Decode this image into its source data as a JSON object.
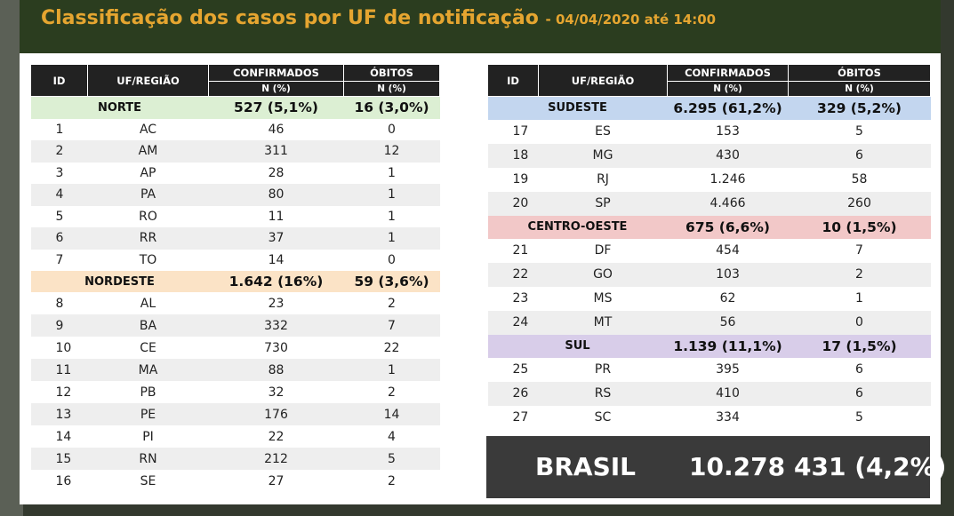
{
  "title": {
    "main": "Classificação dos casos por UF de notificação",
    "date": "- 04/04/2020 até 14:00"
  },
  "headers": {
    "id": "ID",
    "uf": "UF/REGIÃO",
    "confirmed": "CONFIRMADOS",
    "deaths": "ÓBITOS",
    "unit": "N (%)"
  },
  "left": {
    "norte": {
      "region": {
        "name": "NORTE",
        "confirmed": "527 (5,1%)",
        "deaths": "16 (3,0%)"
      },
      "rows": [
        {
          "id": "1",
          "uf": "AC",
          "confirmed": "46",
          "deaths": "0"
        },
        {
          "id": "2",
          "uf": "AM",
          "confirmed": "311",
          "deaths": "12"
        },
        {
          "id": "3",
          "uf": "AP",
          "confirmed": "28",
          "deaths": "1"
        },
        {
          "id": "4",
          "uf": "PA",
          "confirmed": "80",
          "deaths": "1"
        },
        {
          "id": "5",
          "uf": "RO",
          "confirmed": "11",
          "deaths": "1"
        },
        {
          "id": "6",
          "uf": "RR",
          "confirmed": "37",
          "deaths": "1"
        },
        {
          "id": "7",
          "uf": "TO",
          "confirmed": "14",
          "deaths": "0"
        }
      ]
    },
    "nordeste": {
      "region": {
        "name": "NORDESTE",
        "confirmed": "1.642 (16%)",
        "deaths": "59 (3,6%)"
      },
      "rows": [
        {
          "id": "8",
          "uf": "AL",
          "confirmed": "23",
          "deaths": "2"
        },
        {
          "id": "9",
          "uf": "BA",
          "confirmed": "332",
          "deaths": "7"
        },
        {
          "id": "10",
          "uf": "CE",
          "confirmed": "730",
          "deaths": "22"
        },
        {
          "id": "11",
          "uf": "MA",
          "confirmed": "88",
          "deaths": "1"
        },
        {
          "id": "12",
          "uf": "PB",
          "confirmed": "32",
          "deaths": "2"
        },
        {
          "id": "13",
          "uf": "PE",
          "confirmed": "176",
          "deaths": "14"
        },
        {
          "id": "14",
          "uf": "PI",
          "confirmed": "22",
          "deaths": "4"
        },
        {
          "id": "15",
          "uf": "RN",
          "confirmed": "212",
          "deaths": "5"
        },
        {
          "id": "16",
          "uf": "SE",
          "confirmed": "27",
          "deaths": "2"
        }
      ]
    }
  },
  "right": {
    "sudeste": {
      "region": {
        "name": "SUDESTE",
        "confirmed": "6.295 (61,2%)",
        "deaths": "329 (5,2%)"
      },
      "rows": [
        {
          "id": "17",
          "uf": "ES",
          "confirmed": "153",
          "deaths": "5"
        },
        {
          "id": "18",
          "uf": "MG",
          "confirmed": "430",
          "deaths": "6"
        },
        {
          "id": "19",
          "uf": "RJ",
          "confirmed": "1.246",
          "deaths": "58"
        },
        {
          "id": "20",
          "uf": "SP",
          "confirmed": "4.466",
          "deaths": "260"
        }
      ]
    },
    "centro": {
      "region": {
        "name": "CENTRO-OESTE",
        "confirmed": "675 (6,6%)",
        "deaths": "10 (1,5%)"
      },
      "rows": [
        {
          "id": "21",
          "uf": "DF",
          "confirmed": "454",
          "deaths": "7"
        },
        {
          "id": "22",
          "uf": "GO",
          "confirmed": "103",
          "deaths": "2"
        },
        {
          "id": "23",
          "uf": "MS",
          "confirmed": "62",
          "deaths": "1"
        },
        {
          "id": "24",
          "uf": "MT",
          "confirmed": "56",
          "deaths": "0"
        }
      ]
    },
    "sul": {
      "region": {
        "name": "SUL",
        "confirmed": "1.139 (11,1%)",
        "deaths": "17 (1,5%)"
      },
      "rows": [
        {
          "id": "25",
          "uf": "PR",
          "confirmed": "395",
          "deaths": "6"
        },
        {
          "id": "26",
          "uf": "RS",
          "confirmed": "410",
          "deaths": "6"
        },
        {
          "id": "27",
          "uf": "SC",
          "confirmed": "334",
          "deaths": "5"
        }
      ]
    }
  },
  "brasil": {
    "label": "BRASIL",
    "confirmed": "10.278",
    "deaths": "431 (4,2%)"
  },
  "colors": {
    "title_bg": "#2b3d1f",
    "title_text": "#e5a530",
    "header_bg": "#222222",
    "norte": "#dcefd3",
    "nordeste": "#fbe3c6",
    "sudeste": "#c3d6ef",
    "centro_oeste": "#f2c8c8",
    "sul": "#d8cde9",
    "brasil_bg": "#3a3a3a"
  }
}
